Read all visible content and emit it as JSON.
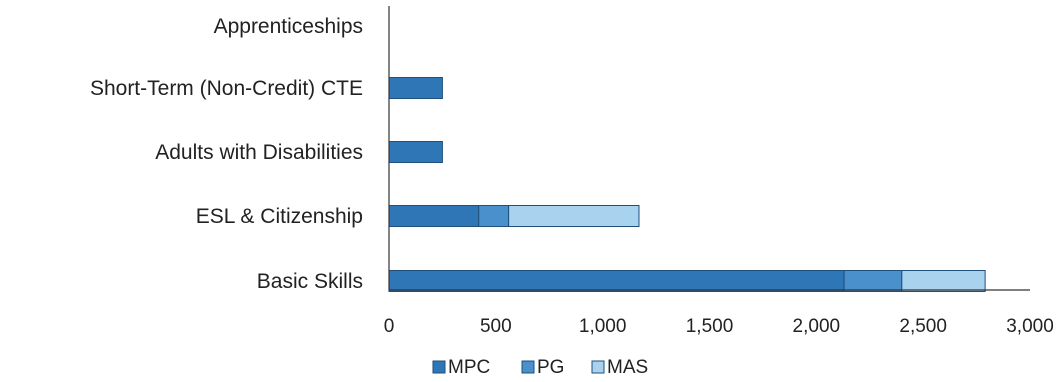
{
  "chart_data": {
    "type": "bar",
    "orientation": "horizontal",
    "stacked": true,
    "categories": [
      "Apprenticeships",
      "Short-Term (Non-Credit) CTE",
      "Adults with Disabilities",
      "ESL & Citizenship",
      "Basic Skills"
    ],
    "series": [
      {
        "name": "MPC",
        "color": "#2f76b6",
        "values": [
          0,
          250,
          250,
          420,
          2130
        ]
      },
      {
        "name": "PG",
        "color": "#4a90cd",
        "values": [
          0,
          0,
          0,
          140,
          270
        ]
      },
      {
        "name": "MAS",
        "color": "#a9d2ef",
        "values": [
          0,
          0,
          0,
          610,
          390
        ]
      }
    ],
    "xlim": [
      0,
      3000
    ],
    "x_ticks": [
      {
        "value": 0,
        "label": "0"
      },
      {
        "value": 500,
        "label": "500"
      },
      {
        "value": 1000,
        "label": "1,000"
      },
      {
        "value": 1500,
        "label": "1,500"
      },
      {
        "value": 2000,
        "label": "2,000"
      },
      {
        "value": 2500,
        "label": "2,500"
      },
      {
        "value": 3000,
        "label": "3,000"
      }
    ],
    "grid": false,
    "legend_position": "bottom",
    "title": "",
    "xlabel": "",
    "ylabel": ""
  }
}
